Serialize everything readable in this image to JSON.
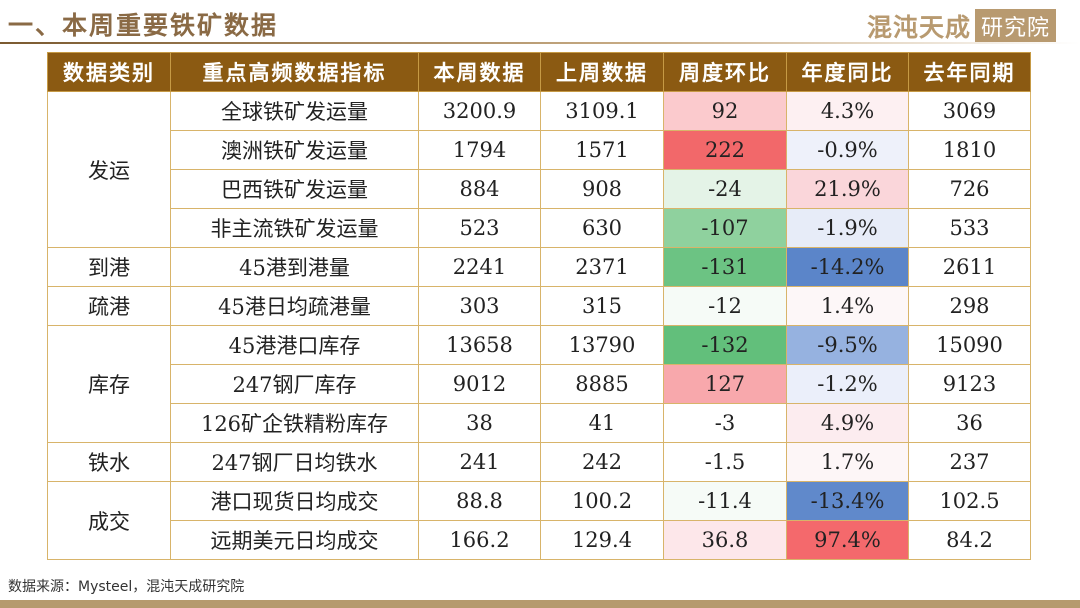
{
  "header": {
    "title": "一、本周重要铁矿数据",
    "logo_text": "混沌天成",
    "logo_box_text": "研究院"
  },
  "table": {
    "columns": [
      "数据类别",
      "重点高频数据指标",
      "本周数据",
      "上周数据",
      "周度环比",
      "年度同比",
      "去年同期"
    ],
    "groups": [
      {
        "category": "发运",
        "rows": [
          {
            "indicator": "全球铁矿发运量",
            "this_week": "3200.9",
            "last_week": "3109.1",
            "wow": "92",
            "yoy": "4.3%",
            "last_year": "3069",
            "wow_color": "#fbcacd",
            "yoy_color": "#fdf0f2"
          },
          {
            "indicator": "澳洲铁矿发运量",
            "this_week": "1794",
            "last_week": "1571",
            "wow": "222",
            "yoy": "-0.9%",
            "last_year": "1810",
            "wow_color": "#f2686a",
            "yoy_color": "#eef1fa"
          },
          {
            "indicator": "巴西铁矿发运量",
            "this_week": "884",
            "last_week": "908",
            "wow": "-24",
            "yoy": "21.9%",
            "last_year": "726",
            "wow_color": "#e4f3e7",
            "yoy_color": "#fad6da"
          },
          {
            "indicator": "非主流铁矿发运量",
            "this_week": "523",
            "last_week": "630",
            "wow": "-107",
            "yoy": "-1.9%",
            "last_year": "533",
            "wow_color": "#8fd19e",
            "yoy_color": "#e7ecf8"
          }
        ]
      },
      {
        "category": "到港",
        "rows": [
          {
            "indicator": "45港到港量",
            "this_week": "2241",
            "last_week": "2371",
            "wow": "-131",
            "yoy": "-14.2%",
            "last_year": "2611",
            "wow_color": "#6cc383",
            "yoy_color": "#5b85c9"
          }
        ]
      },
      {
        "category": "疏港",
        "rows": [
          {
            "indicator": "45港日均疏港量",
            "this_week": "303",
            "last_week": "315",
            "wow": "-12",
            "yoy": "1.4%",
            "last_year": "298",
            "wow_color": "#f6fbf7",
            "yoy_color": "#fdf7f8"
          }
        ]
      },
      {
        "category": "库存",
        "rows": [
          {
            "indicator": "45港港口库存",
            "this_week": "13658",
            "last_week": "13790",
            "wow": "-132",
            "yoy": "-9.5%",
            "last_year": "15090",
            "wow_color": "#62bf7b",
            "yoy_color": "#96b2e0"
          },
          {
            "indicator": "247钢厂库存",
            "this_week": "9012",
            "last_week": "8885",
            "wow": "127",
            "yoy": "-1.2%",
            "last_year": "9123",
            "wow_color": "#f8a8ac",
            "yoy_color": "#ebeffa"
          },
          {
            "indicator": "126矿企铁精粉库存",
            "this_week": "38",
            "last_week": "41",
            "wow": "-3",
            "yoy": "4.9%",
            "last_year": "36",
            "wow_color": "#ffffff",
            "yoy_color": "#fcecef"
          }
        ]
      },
      {
        "category": "铁水",
        "rows": [
          {
            "indicator": "247钢厂日均铁水",
            "this_week": "241",
            "last_week": "242",
            "wow": "-1.5",
            "yoy": "1.7%",
            "last_year": "237",
            "wow_color": "#ffffff",
            "yoy_color": "#fdf6f7"
          }
        ]
      },
      {
        "category": "成交",
        "rows": [
          {
            "indicator": "港口现货日均成交",
            "this_week": "88.8",
            "last_week": "100.2",
            "wow": "-11.4",
            "yoy": "-13.4%",
            "last_year": "102.5",
            "wow_color": "#f6fbf7",
            "yoy_color": "#6089cb"
          },
          {
            "indicator": "远期美元日均成交",
            "this_week": "166.2",
            "last_week": "129.4",
            "wow": "36.8",
            "yoy": "97.4%",
            "last_year": "84.2",
            "wow_color": "#fde7ea",
            "yoy_color": "#f4696c"
          }
        ]
      }
    ]
  },
  "footer": {
    "source": "数据来源：Mysteel，混沌天成研究院"
  }
}
